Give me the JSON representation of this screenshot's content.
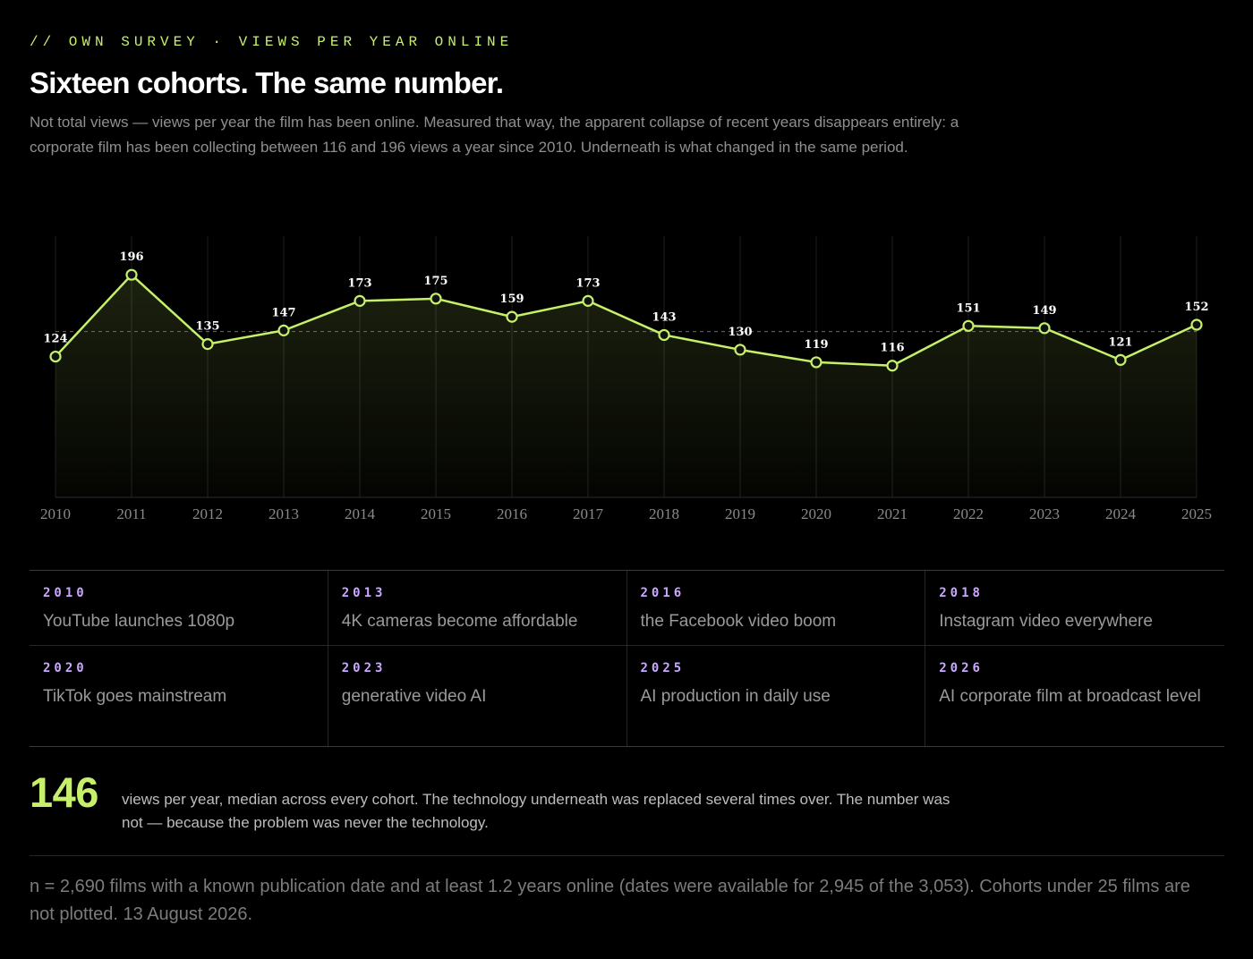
{
  "header": {
    "eyebrow": "// OWN SURVEY · VIEWS PER YEAR ONLINE",
    "title": "Sixteen cohorts. The same number.",
    "subtitle": "Not total views — views per year the film has been online. Measured that way, the apparent collapse of recent years disappears entirely: a corporate film has been collecting between 116 and 196 views a year since 2010. Underneath is what changed in the same period."
  },
  "colors": {
    "accent": "#c6f06a",
    "year_label": "#c9a8ff",
    "background": "#000000"
  },
  "chart_data": {
    "type": "line",
    "x": [
      "2010",
      "2011",
      "2012",
      "2013",
      "2014",
      "2015",
      "2016",
      "2017",
      "2018",
      "2019",
      "2020",
      "2021",
      "2022",
      "2023",
      "2024",
      "2025"
    ],
    "values": [
      124,
      196,
      135,
      147,
      173,
      175,
      159,
      173,
      143,
      130,
      119,
      116,
      151,
      149,
      121,
      152
    ],
    "reference_line": 146,
    "ylim": [
      0,
      230
    ],
    "grid": "vertical",
    "title": "",
    "xlabel": "",
    "ylabel": ""
  },
  "timeline": [
    {
      "year": "2010",
      "text": "YouTube launches 1080p"
    },
    {
      "year": "2013",
      "text": "4K cameras become affordable"
    },
    {
      "year": "2016",
      "text": "the Facebook video boom"
    },
    {
      "year": "2018",
      "text": "Instagram video everywhere"
    },
    {
      "year": "2020",
      "text": "TikTok goes mainstream"
    },
    {
      "year": "2023",
      "text": "generative video AI"
    },
    {
      "year": "2025",
      "text": "AI production in daily use"
    },
    {
      "year": "2026",
      "text": "AI corporate film at broadcast level"
    }
  ],
  "summary": {
    "value": "146",
    "text": "views per year, median across every cohort. The technology underneath was replaced several times over. The number was not — because the problem was never the technology."
  },
  "footnote": "n = 2,690 films with a known publication date and at least 1.2 years online (dates were available for 2,945 of the 3,053). Cohorts under 25 films are not plotted. 13 August 2026."
}
